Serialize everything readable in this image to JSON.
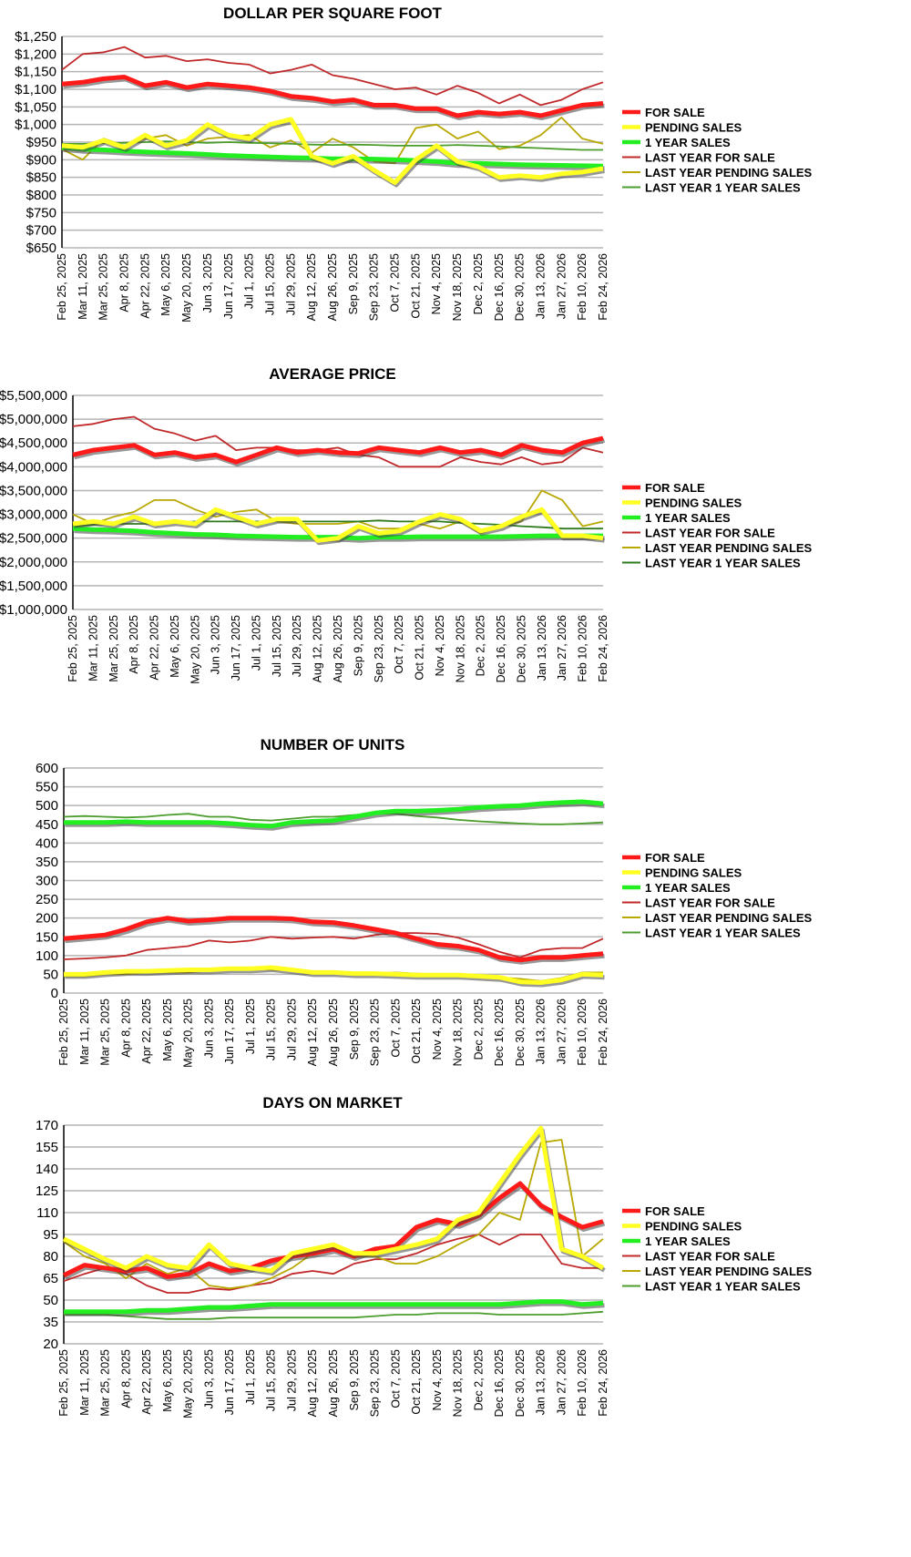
{
  "x_labels": [
    "Feb 25, 2025",
    "Mar 11, 2025",
    "Mar 25, 2025",
    "Apr 8, 2025",
    "Apr 22, 2025",
    "May 6, 2025",
    "May 20, 2025",
    "Jun 3, 2025",
    "Jun 17, 2025",
    "Jul 1, 2025",
    "Jul 15, 2025",
    "Jul 29, 2025",
    "Aug 12, 2025",
    "Aug 26, 2025",
    "Sep 9, 2025",
    "Sep 23, 2025",
    "Oct 7, 2025",
    "Oct 21, 2025",
    "Nov 4, 2025",
    "Nov 18, 2025",
    "Dec 2, 2025",
    "Dec 16, 2025",
    "Dec 30, 2025",
    "Jan 13, 2026",
    "Jan 27, 2026",
    "Feb 10, 2026",
    "Feb 24, 2026"
  ],
  "series_styles": [
    {
      "name": "FOR SALE",
      "color": "#ff1a1a",
      "weight": "thick"
    },
    {
      "name": "PENDING SALES",
      "color": "#ffff22",
      "weight": "thick"
    },
    {
      "name": "1 YEAR SALES",
      "color": "#22ee22",
      "weight": "thick"
    },
    {
      "name": "LAST YEAR FOR SALE",
      "color": "#c0282a",
      "weight": "thin"
    },
    {
      "name": "LAST YEAR PENDING SALES",
      "color": "#b8a800",
      "weight": "thin"
    },
    {
      "name": "LAST YEAR 1 YEAR SALES",
      "color": "#4c9e2c",
      "weight": "thin"
    }
  ],
  "chart_data": [
    {
      "type": "line",
      "title": "DOLLAR PER SQUARE FOOT",
      "ylim": [
        650,
        1250
      ],
      "ystep": 50,
      "grid": true,
      "legend": "right",
      "y_tick_labels": [
        "$650",
        "$700",
        "$750",
        "$800",
        "$850",
        "$900",
        "$950",
        "$1,000",
        "$1,050",
        "$1,100",
        "$1,150",
        "$1,200",
        "$1,250"
      ],
      "series": [
        {
          "name": "FOR SALE",
          "values": [
            1115,
            1120,
            1130,
            1135,
            1110,
            1120,
            1105,
            1115,
            1110,
            1105,
            1095,
            1080,
            1075,
            1065,
            1070,
            1055,
            1055,
            1045,
            1045,
            1025,
            1035,
            1030,
            1035,
            1025,
            1040,
            1055,
            1060
          ]
        },
        {
          "name": "PENDING SALES",
          "values": [
            940,
            935,
            955,
            935,
            970,
            940,
            955,
            1000,
            970,
            960,
            1000,
            1015,
            910,
            890,
            910,
            870,
            835,
            900,
            940,
            895,
            880,
            850,
            855,
            850,
            860,
            865,
            875
          ]
        },
        {
          "name": "1 YEAR SALES",
          "values": [
            935,
            930,
            928,
            925,
            922,
            920,
            918,
            915,
            912,
            910,
            908,
            906,
            905,
            903,
            903,
            902,
            900,
            898,
            895,
            890,
            890,
            888,
            886,
            885,
            884,
            883,
            882
          ]
        },
        {
          "name": "LAST YEAR FOR SALE",
          "values": [
            1155,
            1200,
            1205,
            1220,
            1190,
            1195,
            1180,
            1185,
            1175,
            1170,
            1145,
            1155,
            1170,
            1140,
            1130,
            1115,
            1100,
            1105,
            1085,
            1110,
            1090,
            1060,
            1085,
            1055,
            1070,
            1100,
            1120
          ]
        },
        {
          "name": "LAST YEAR PENDING SALES",
          "values": [
            930,
            900,
            960,
            940,
            960,
            970,
            940,
            960,
            965,
            970,
            935,
            955,
            920,
            960,
            935,
            895,
            890,
            990,
            1000,
            960,
            980,
            930,
            940,
            970,
            1020,
            960,
            945
          ]
        },
        {
          "name": "LAST YEAR 1 YEAR SALES",
          "values": [
            945,
            945,
            947,
            948,
            950,
            952,
            950,
            948,
            950,
            948,
            947,
            945,
            943,
            942,
            943,
            942,
            940,
            940,
            940,
            942,
            940,
            938,
            935,
            933,
            930,
            928,
            928
          ]
        }
      ]
    },
    {
      "type": "line",
      "title": "AVERAGE PRICE",
      "ylim": [
        1000000,
        5500000
      ],
      "ystep": 500000,
      "grid": true,
      "legend": "right",
      "y_tick_labels": [
        "$1,000,000",
        "$1,500,000",
        "$2,000,000",
        "$2,500,000",
        "$3,000,000",
        "$3,500,000",
        "$4,000,000",
        "$4,500,000",
        "$5,000,000",
        "$5,500,000"
      ],
      "series": [
        {
          "name": "FOR SALE",
          "values": [
            4250000,
            4350000,
            4400000,
            4450000,
            4250000,
            4300000,
            4200000,
            4250000,
            4100000,
            4250000,
            4400000,
            4300000,
            4350000,
            4300000,
            4280000,
            4400000,
            4350000,
            4300000,
            4400000,
            4300000,
            4350000,
            4250000,
            4450000,
            4350000,
            4300000,
            4500000,
            4600000
          ]
        },
        {
          "name": "PENDING SALES",
          "values": [
            2800000,
            2850000,
            2800000,
            2950000,
            2800000,
            2850000,
            2800000,
            3100000,
            2950000,
            2800000,
            2900000,
            2900000,
            2450000,
            2500000,
            2750000,
            2600000,
            2650000,
            2850000,
            3000000,
            2900000,
            2650000,
            2750000,
            2950000,
            3100000,
            2550000,
            2550000,
            2500000
          ]
        },
        {
          "name": "1 YEAR SALES",
          "values": [
            2700000,
            2680000,
            2670000,
            2650000,
            2620000,
            2600000,
            2580000,
            2570000,
            2550000,
            2540000,
            2530000,
            2520000,
            2520000,
            2520000,
            2500000,
            2520000,
            2520000,
            2530000,
            2530000,
            2530000,
            2530000,
            2530000,
            2540000,
            2550000,
            2550000,
            2550000,
            2550000
          ]
        },
        {
          "name": "LAST YEAR FOR SALE",
          "values": [
            4850000,
            4900000,
            5000000,
            5050000,
            4800000,
            4700000,
            4550000,
            4650000,
            4350000,
            4400000,
            4400000,
            4350000,
            4350000,
            4400000,
            4250000,
            4200000,
            4000000,
            4000000,
            4000000,
            4200000,
            4100000,
            4050000,
            4200000,
            4050000,
            4100000,
            4400000,
            4300000
          ]
        },
        {
          "name": "LAST YEAR PENDING SALES",
          "values": [
            3000000,
            2800000,
            2950000,
            3050000,
            3300000,
            3300000,
            3100000,
            2950000,
            3050000,
            3100000,
            2850000,
            2800000,
            2800000,
            2800000,
            2850000,
            2700000,
            2700000,
            2800000,
            2700000,
            2850000,
            2600000,
            2750000,
            2850000,
            3500000,
            3300000,
            2750000,
            2850000
          ]
        },
        {
          "name": "LAST YEAR 1 YEAR SALES",
          "values": [
            2750000,
            2780000,
            2800000,
            2800000,
            2800000,
            2820000,
            2850000,
            2850000,
            2850000,
            2850000,
            2850000,
            2850000,
            2850000,
            2850000,
            2850000,
            2870000,
            2850000,
            2850000,
            2850000,
            2820000,
            2800000,
            2780000,
            2750000,
            2730000,
            2700000,
            2700000,
            2700000
          ]
        }
      ]
    },
    {
      "type": "line",
      "title": "NUMBER OF UNITS",
      "ylim": [
        0,
        600
      ],
      "ystep": 50,
      "grid": true,
      "legend": "right",
      "y_tick_labels": [
        "0",
        "50",
        "100",
        "150",
        "200",
        "250",
        "300",
        "350",
        "400",
        "450",
        "500",
        "550",
        "600"
      ],
      "series": [
        {
          "name": "FOR SALE",
          "values": [
            145,
            150,
            155,
            170,
            190,
            200,
            192,
            195,
            200,
            200,
            200,
            198,
            190,
            188,
            180,
            170,
            160,
            145,
            130,
            125,
            115,
            95,
            88,
            95,
            95,
            100,
            105
          ]
        },
        {
          "name": "PENDING SALES",
          "values": [
            50,
            50,
            55,
            58,
            58,
            60,
            62,
            62,
            65,
            65,
            68,
            62,
            55,
            55,
            52,
            52,
            50,
            48,
            48,
            48,
            45,
            42,
            30,
            28,
            35,
            50,
            48
          ]
        },
        {
          "name": "1 YEAR SALES",
          "values": [
            455,
            455,
            455,
            457,
            455,
            455,
            455,
            455,
            452,
            448,
            445,
            455,
            458,
            460,
            470,
            480,
            485,
            485,
            487,
            490,
            495,
            498,
            500,
            505,
            508,
            510,
            505
          ]
        },
        {
          "name": "LAST YEAR FOR SALE",
          "values": [
            90,
            92,
            95,
            100,
            115,
            120,
            125,
            140,
            135,
            140,
            150,
            145,
            148,
            150,
            145,
            155,
            160,
            160,
            158,
            148,
            130,
            110,
            95,
            115,
            120,
            120,
            145
          ]
        },
        {
          "name": "LAST YEAR PENDING SALES",
          "values": [
            45,
            45,
            50,
            50,
            55,
            55,
            55,
            60,
            62,
            65,
            62,
            60,
            58,
            55,
            55,
            52,
            55,
            52,
            50,
            48,
            45,
            42,
            38,
            32,
            40,
            55,
            55
          ]
        },
        {
          "name": "LAST YEAR 1 YEAR SALES",
          "values": [
            470,
            472,
            470,
            468,
            470,
            475,
            478,
            470,
            470,
            462,
            460,
            465,
            470,
            470,
            475,
            478,
            478,
            472,
            468,
            462,
            458,
            455,
            452,
            450,
            450,
            452,
            455
          ]
        }
      ]
    },
    {
      "type": "line",
      "title": "DAYS ON MARKET",
      "ylim": [
        20,
        170
      ],
      "ystep": 15,
      "grid": true,
      "legend": "right",
      "y_tick_labels": [
        "20",
        "35",
        "50",
        "65",
        "80",
        "95",
        "110",
        "125",
        "140",
        "155",
        "170"
      ],
      "series": [
        {
          "name": "FOR SALE",
          "values": [
            67,
            74,
            72,
            70,
            72,
            66,
            68,
            75,
            70,
            72,
            77,
            80,
            82,
            85,
            80,
            85,
            87,
            100,
            105,
            102,
            108,
            120,
            130,
            115,
            107,
            100,
            104
          ]
        },
        {
          "name": "PENDING SALES",
          "values": [
            92,
            85,
            78,
            72,
            80,
            74,
            72,
            88,
            75,
            72,
            70,
            82,
            85,
            88,
            82,
            82,
            85,
            88,
            92,
            105,
            110,
            130,
            150,
            168,
            85,
            80,
            72
          ]
        },
        {
          "name": "1 YEAR SALES",
          "values": [
            42,
            42,
            42,
            42,
            43,
            43,
            44,
            45,
            45,
            46,
            47,
            47,
            47,
            47,
            47,
            47,
            47,
            47,
            47,
            47,
            47,
            47,
            48,
            49,
            49,
            47,
            48
          ]
        },
        {
          "name": "LAST YEAR FOR SALE",
          "values": [
            63,
            68,
            72,
            68,
            60,
            55,
            55,
            58,
            57,
            60,
            62,
            68,
            70,
            68,
            75,
            78,
            78,
            82,
            88,
            92,
            95,
            88,
            95,
            95,
            75,
            72,
            72
          ]
        },
        {
          "name": "LAST YEAR PENDING SALES",
          "values": [
            90,
            80,
            75,
            65,
            75,
            68,
            72,
            60,
            58,
            60,
            65,
            72,
            82,
            85,
            80,
            80,
            75,
            75,
            80,
            88,
            95,
            110,
            105,
            158,
            160,
            80,
            92
          ]
        },
        {
          "name": "LAST YEAR 1 YEAR SALES",
          "values": [
            40,
            40,
            40,
            39,
            38,
            37,
            37,
            37,
            38,
            38,
            38,
            38,
            38,
            38,
            38,
            39,
            40,
            40,
            41,
            41,
            41,
            40,
            40,
            40,
            40,
            41,
            42
          ]
        }
      ]
    }
  ]
}
